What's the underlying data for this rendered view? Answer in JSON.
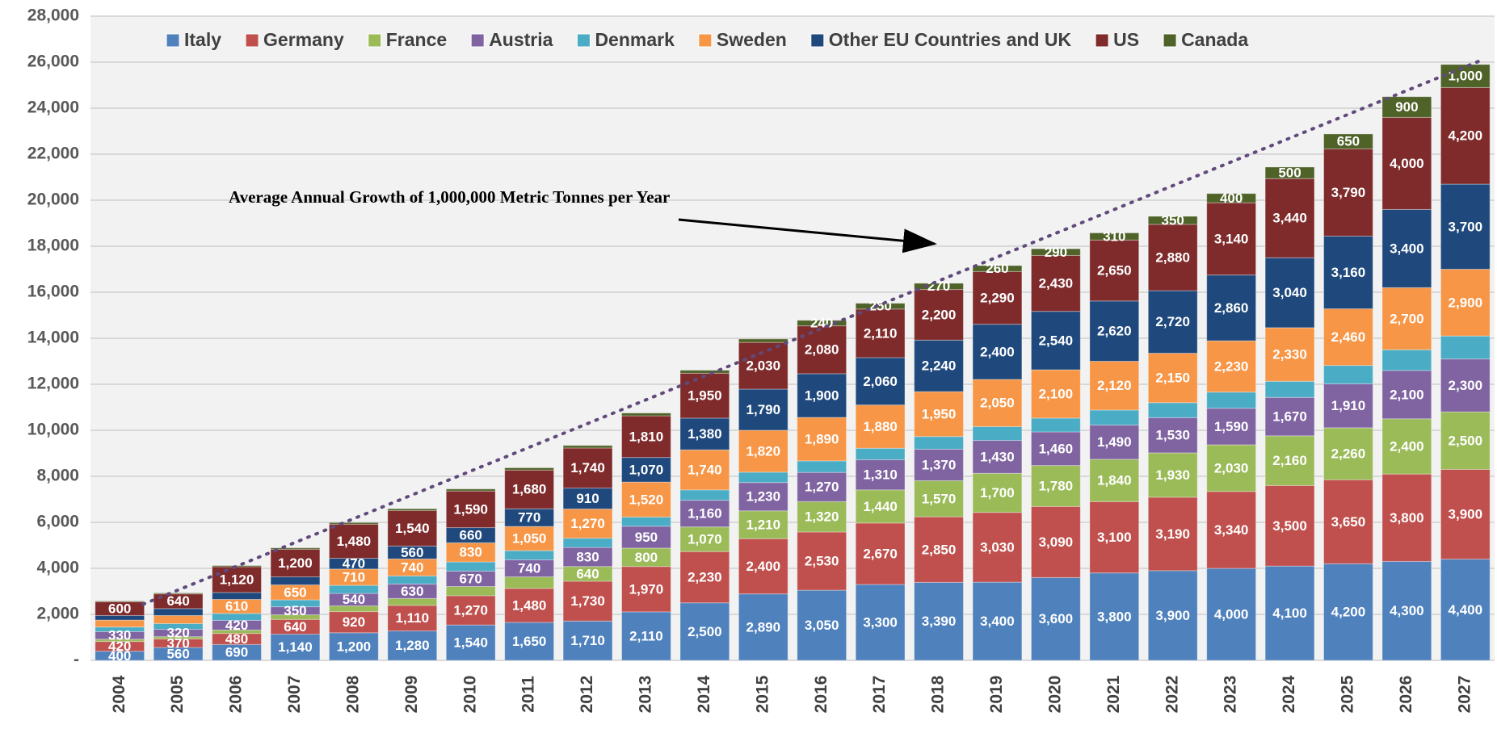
{
  "chart_data": {
    "type": "stacked_bar",
    "annotation": "Average Annual Growth  of 1,000,000 Metric Tonnes per Year",
    "categories": [
      "2004",
      "2005",
      "2006",
      "2007",
      "2008",
      "2009",
      "2010",
      "2011",
      "2012",
      "2013",
      "2014",
      "2015",
      "2016",
      "2017",
      "2018",
      "2019",
      "2020",
      "2021",
      "2022",
      "2023",
      "2024",
      "2025",
      "2026",
      "2027"
    ],
    "ylim": [
      0,
      28000
    ],
    "yticks": [
      {
        "value": 0,
        "label": "-"
      },
      {
        "value": 2000,
        "label": "2,000"
      },
      {
        "value": 4000,
        "label": "4,000"
      },
      {
        "value": 6000,
        "label": "6,000"
      },
      {
        "value": 8000,
        "label": "8,000"
      },
      {
        "value": 10000,
        "label": "10,000"
      },
      {
        "value": 12000,
        "label": "12,000"
      },
      {
        "value": 14000,
        "label": "14,000"
      },
      {
        "value": 16000,
        "label": "16,000"
      },
      {
        "value": 18000,
        "label": "18,000"
      },
      {
        "value": 20000,
        "label": "20,000"
      },
      {
        "value": 22000,
        "label": "22,000"
      },
      {
        "value": 24000,
        "label": "24,000"
      },
      {
        "value": 26000,
        "label": "26,000"
      },
      {
        "value": 28000,
        "label": "28,000"
      }
    ],
    "grid": true,
    "legend": "top",
    "series": [
      {
        "name": "Italy",
        "color": "#4f81bd",
        "values": [
          400,
          560,
          690,
          1140,
          1200,
          1280,
          1540,
          1650,
          1710,
          2110,
          2500,
          2890,
          3050,
          3300,
          3390,
          3400,
          3600,
          3800,
          3900,
          4000,
          4100,
          4200,
          4300,
          4400
        ],
        "value_labels": [
          "400",
          "560",
          "690",
          "1,140",
          "1,200",
          "1,280",
          "1,540",
          "1,650",
          "1,710",
          "2,110",
          "2,500",
          "2,890",
          "3,050",
          "3,300",
          "3,390",
          "3,400",
          "3,600",
          "3,800",
          "3,900",
          "4,000",
          "4,100",
          "4,200",
          "4,300",
          "4,400"
        ]
      },
      {
        "name": "Germany",
        "color": "#c0504d",
        "values": [
          420,
          370,
          480,
          640,
          920,
          1110,
          1270,
          1480,
          1730,
          1970,
          2230,
          2400,
          2530,
          2670,
          2850,
          3030,
          3090,
          3100,
          3190,
          3340,
          3500,
          3650,
          3800,
          3900
        ],
        "value_labels": [
          "420",
          "370",
          "480",
          "640",
          "920",
          "1,110",
          "1,270",
          "1,480",
          "1,730",
          "1,970",
          "2,230",
          "2,400",
          "2,530",
          "2,670",
          "2,850",
          "3,030",
          "3,090",
          "3,100",
          "3,190",
          "3,340",
          "3,500",
          "3,650",
          "3,800",
          "3,900"
        ]
      },
      {
        "name": "France",
        "color": "#9bbb59",
        "values": [
          100,
          100,
          150,
          200,
          250,
          300,
          400,
          500,
          640,
          800,
          1070,
          1210,
          1320,
          1440,
          1570,
          1700,
          1780,
          1840,
          1930,
          2030,
          2160,
          2260,
          2400,
          2500
        ],
        "value_labels": [
          null,
          null,
          null,
          null,
          null,
          null,
          null,
          null,
          "640",
          "800",
          "1,070",
          "1,210",
          "1,320",
          "1,440",
          "1,570",
          "1,700",
          "1,780",
          "1,840",
          "1,930",
          "2,030",
          "2,160",
          "2,260",
          "2,400",
          "2,500"
        ]
      },
      {
        "name": "Austria",
        "color": "#8064a2",
        "values": [
          330,
          320,
          420,
          350,
          540,
          630,
          670,
          740,
          830,
          950,
          1160,
          1230,
          1270,
          1310,
          1370,
          1430,
          1460,
          1490,
          1530,
          1590,
          1670,
          1910,
          2100,
          2300
        ],
        "value_labels": [
          "330",
          "320",
          "420",
          "350",
          "540",
          "630",
          "670",
          "740",
          "830",
          "950",
          "1,160",
          "1,230",
          "1,270",
          "1,310",
          "1,370",
          "1,430",
          "1,460",
          "1,490",
          "1,530",
          "1,590",
          "1,670",
          "1,910",
          "2,100",
          "2,300"
        ]
      },
      {
        "name": "Denmark",
        "color": "#4bacc6",
        "values": [
          200,
          250,
          300,
          300,
          350,
          350,
          400,
          400,
          400,
          400,
          450,
          450,
          500,
          500,
          550,
          600,
          600,
          650,
          650,
          700,
          700,
          800,
          900,
          1000
        ],
        "value_labels": [
          null,
          null,
          null,
          null,
          null,
          null,
          null,
          null,
          null,
          null,
          null,
          null,
          null,
          null,
          null,
          null,
          null,
          null,
          null,
          null,
          null,
          null,
          null,
          null
        ]
      },
      {
        "name": "Sweden",
        "color": "#f79646",
        "values": [
          300,
          350,
          610,
          650,
          710,
          740,
          830,
          1050,
          1270,
          1520,
          1740,
          1820,
          1890,
          1880,
          1950,
          2050,
          2100,
          2120,
          2150,
          2230,
          2330,
          2460,
          2700,
          2900
        ],
        "value_labels": [
          null,
          null,
          "610",
          "650",
          "710",
          "740",
          "830",
          "1,050",
          "1,270",
          "1,520",
          "1,740",
          "1,820",
          "1,890",
          "1,880",
          "1,950",
          "2,050",
          "2,100",
          "2,120",
          "2,150",
          "2,230",
          "2,330",
          "2,460",
          "2,700",
          "2,900"
        ]
      },
      {
        "name": "Other EU Countries and UK",
        "color": "#1f497d",
        "values": [
          200,
          300,
          300,
          350,
          470,
          560,
          660,
          770,
          910,
          1070,
          1380,
          1790,
          1900,
          2060,
          2240,
          2400,
          2540,
          2620,
          2720,
          2860,
          3040,
          3160,
          3400,
          3700
        ],
        "value_labels": [
          null,
          null,
          null,
          null,
          "470",
          "560",
          "660",
          "770",
          "910",
          "1,070",
          "1,380",
          "1,790",
          "1,900",
          "2,060",
          "2,240",
          "2,400",
          "2,540",
          "2,620",
          "2,720",
          "2,860",
          "3,040",
          "3,160",
          "3,400",
          "3,700"
        ]
      },
      {
        "name": "US",
        "color": "#7f2b2b",
        "values": [
          600,
          640,
          1120,
          1200,
          1480,
          1540,
          1590,
          1680,
          1740,
          1810,
          1950,
          2030,
          2080,
          2110,
          2200,
          2290,
          2430,
          2650,
          2880,
          3140,
          3440,
          3790,
          4000,
          4200
        ],
        "value_labels": [
          "600",
          "640",
          "1,120",
          "1,200",
          "1,480",
          "1,540",
          "1,590",
          "1,680",
          "1,740",
          "1,810",
          "1,950",
          "2,030",
          "2,080",
          "2,110",
          "2,200",
          "2,290",
          "2,430",
          "2,650",
          "2,880",
          "3,140",
          "3,440",
          "3,790",
          "4,000",
          "4,200"
        ]
      },
      {
        "name": "Canada",
        "color": "#4f6228",
        "values": [
          30,
          40,
          50,
          60,
          70,
          80,
          90,
          100,
          110,
          120,
          130,
          150,
          240,
          250,
          270,
          260,
          290,
          310,
          350,
          400,
          500,
          650,
          900,
          1000
        ],
        "value_labels": [
          null,
          null,
          null,
          null,
          null,
          null,
          null,
          null,
          null,
          null,
          null,
          null,
          "240",
          "250",
          "270",
          "260",
          "290",
          "310",
          "350",
          "400",
          "500",
          "650",
          "900",
          "1,000"
        ]
      }
    ]
  }
}
